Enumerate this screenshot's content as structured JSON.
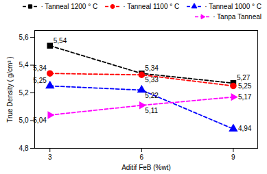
{
  "chart_data": {
    "type": "line",
    "x": [
      3,
      6,
      9
    ],
    "series": [
      {
        "name": "· Tanneal 1200 ° C",
        "color": "black",
        "marker": "square",
        "line_style": "dashed",
        "values": [
          5.54,
          5.34,
          5.27
        ],
        "value_labels": [
          "5,54",
          "5,34",
          "5,27"
        ]
      },
      {
        "name": "· Tanneal 1100 ° C",
        "color": "red",
        "marker": "circle",
        "line_style": "dashed",
        "values": [
          5.34,
          5.33,
          5.25
        ],
        "value_labels": [
          "5,34",
          "5,33",
          "5,25"
        ]
      },
      {
        "name": "· Tanneal 1000 ° C",
        "color": "blue",
        "marker": "triangle-up",
        "line_style": "dashed",
        "values": [
          5.25,
          5.22,
          4.94
        ],
        "value_labels": [
          "5,25",
          "5,22",
          "4,94"
        ]
      },
      {
        "name": "· Tanpa Tanneal",
        "color": "magenta",
        "marker": "triangle-right",
        "line_style": "dashed",
        "values": [
          5.04,
          5.11,
          5.17
        ],
        "value_labels": [
          "5,04",
          "5,11",
          "5,17"
        ]
      }
    ],
    "xlabel": "Aditif FeB (%wt)",
    "ylabel": "True Density ( g/cm³ )",
    "xlim": [
      2.5,
      9.8
    ],
    "xticks": [
      3,
      6,
      9
    ],
    "ylim": [
      4.8,
      5.65
    ],
    "yticks": [
      {
        "value": 4.8,
        "label": "4,8"
      },
      {
        "value": 5.0,
        "label": "5,0"
      },
      {
        "value": 5.2,
        "label": "5,2"
      },
      {
        "value": 5.4,
        "label": "5,4"
      },
      {
        "value": 5.6,
        "label": "5,6"
      }
    ],
    "grid": false,
    "legend": "upper right",
    "data_labels": true
  }
}
